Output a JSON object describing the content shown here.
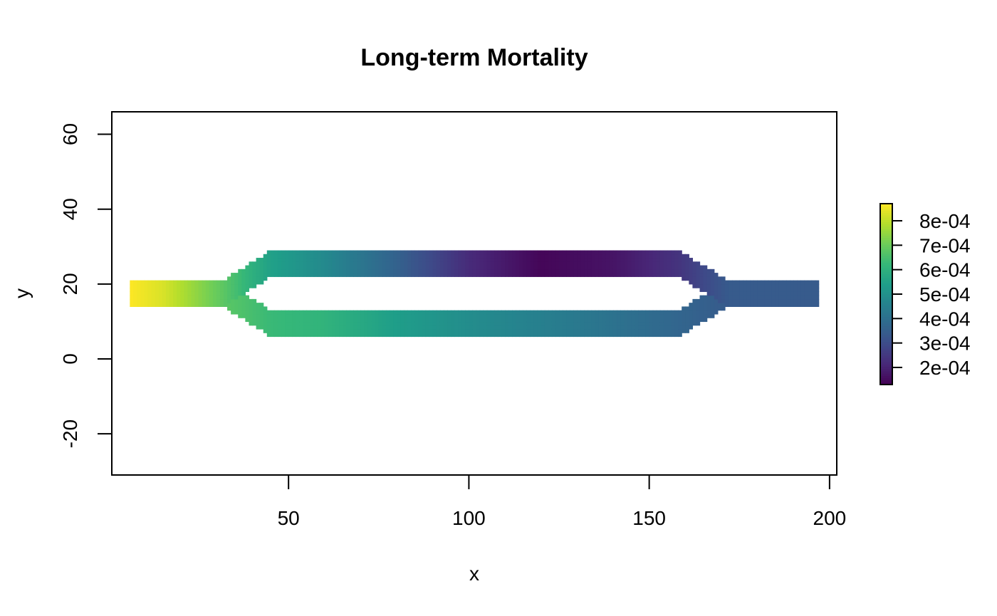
{
  "chart_data": {
    "type": "heatmap",
    "title": "Long-term Mortality",
    "xlabel": "x",
    "ylabel": "y",
    "xlim": [
      1,
      202
    ],
    "ylim": [
      -31,
      66
    ],
    "x_ticks": [
      {
        "value": 50,
        "label": "50"
      },
      {
        "value": 100,
        "label": "100"
      },
      {
        "value": 150,
        "label": "150"
      },
      {
        "value": 200,
        "label": "200"
      }
    ],
    "y_ticks": [
      {
        "value": -20,
        "label": "-20"
      },
      {
        "value": 0,
        "label": "0"
      },
      {
        "value": 20,
        "label": "20"
      },
      {
        "value": 40,
        "label": "40"
      },
      {
        "value": 60,
        "label": "60"
      }
    ],
    "grid": false,
    "colorbar": {
      "palette": "viridis",
      "colors": [
        "#440154",
        "#482878",
        "#3E4A89",
        "#31688E",
        "#26828E",
        "#1F9E89",
        "#35B779",
        "#6DCD59",
        "#B4DE2C",
        "#FDE725"
      ],
      "range": [
        0.00013,
        0.00087
      ],
      "ticks": [
        {
          "value": 0.0002,
          "label": "2e-04"
        },
        {
          "value": 0.0003,
          "label": "3e-04"
        },
        {
          "value": 0.0004,
          "label": "4e-04"
        },
        {
          "value": 0.0005,
          "label": "5e-04"
        },
        {
          "value": 0.0006,
          "label": "6e-04"
        },
        {
          "value": 0.0007,
          "label": "7e-04"
        },
        {
          "value": 0.0008,
          "label": "8e-04"
        }
      ]
    },
    "regions": [
      {
        "name": "inlet",
        "x": [
          6,
          32
        ],
        "y": [
          14,
          21
        ],
        "values": [
          [
            6,
            0.00087
          ],
          [
            15,
            0.00083
          ],
          [
            24,
            0.00075
          ],
          [
            32,
            0.00068
          ]
        ]
      },
      {
        "name": "upper-branch",
        "x": [
          45,
          158
        ],
        "y": [
          22,
          29
        ],
        "values": [
          [
            45,
            0.00055
          ],
          [
            60,
            0.00048
          ],
          [
            80,
            0.00036
          ],
          [
            100,
            0.00022
          ],
          [
            120,
            0.00014
          ],
          [
            140,
            0.00017
          ],
          [
            158,
            0.00024
          ]
        ]
      },
      {
        "name": "lower-branch",
        "x": [
          45,
          158
        ],
        "y": [
          6,
          13
        ],
        "values": [
          [
            45,
            0.00063
          ],
          [
            60,
            0.00061
          ],
          [
            80,
            0.00054
          ],
          [
            100,
            0.00049
          ],
          [
            120,
            0.00045
          ],
          [
            140,
            0.00041
          ],
          [
            158,
            0.00037
          ]
        ]
      },
      {
        "name": "outlet",
        "x": [
          172,
          197
        ],
        "y": [
          14,
          21
        ],
        "values": [
          [
            172,
            0.00034
          ],
          [
            197,
            0.00034
          ]
        ]
      }
    ]
  }
}
